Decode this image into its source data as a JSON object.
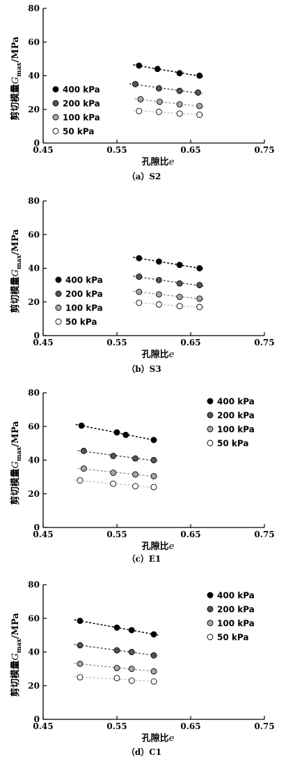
{
  "chart_data": [
    {
      "type": "scatter",
      "caption": "（a）S2",
      "xlabel": "孔隙比",
      "xlabel_var": "e",
      "ylabel": "剪切模量",
      "ylabel_var": "G",
      "ylabel_sub": "max",
      "ylabel_unit": "/MPa",
      "xlim": [
        0.45,
        0.75
      ],
      "ylim": [
        0,
        80
      ],
      "xticks": [
        "0.45",
        "0.55",
        "0.65",
        "0.75"
      ],
      "yticks": [
        "0",
        "20",
        "40",
        "60",
        "80"
      ],
      "grid": false,
      "legend_position": "left",
      "series": [
        {
          "name": "400 kPa",
          "color": "#000000",
          "x": [
            0.58,
            0.605,
            0.635,
            0.662
          ],
          "y": [
            46,
            44,
            41.5,
            40
          ]
        },
        {
          "name": "200 kPa",
          "color": "#555555",
          "x": [
            0.575,
            0.607,
            0.635,
            0.66
          ],
          "y": [
            35,
            32.5,
            31,
            30
          ]
        },
        {
          "name": "100 kPa",
          "color": "#a8a8a8",
          "x": [
            0.582,
            0.608,
            0.635,
            0.662
          ],
          "y": [
            26,
            24.5,
            23,
            22
          ]
        },
        {
          "name": "50 kPa",
          "color": "#ffffff",
          "x": [
            0.58,
            0.607,
            0.635,
            0.662
          ],
          "y": [
            19,
            18.5,
            17.5,
            16.8
          ]
        }
      ]
    },
    {
      "type": "scatter",
      "caption": "（b）S3",
      "xlabel": "孔隙比",
      "xlabel_var": "e",
      "ylabel": "剪切模量",
      "ylabel_var": "G",
      "ylabel_sub": "max",
      "ylabel_unit": "/MPa",
      "xlim": [
        0.45,
        0.75
      ],
      "ylim": [
        0,
        80
      ],
      "xticks": [
        "0.45",
        "0.55",
        "0.65",
        "0.75"
      ],
      "yticks": [
        "0",
        "20",
        "40",
        "60",
        "80"
      ],
      "grid": false,
      "legend_position": "left",
      "series": [
        {
          "name": "400 kPa",
          "color": "#000000",
          "x": [
            0.58,
            0.607,
            0.635,
            0.662
          ],
          "y": [
            46,
            44,
            42,
            40
          ]
        },
        {
          "name": "200 kPa",
          "color": "#555555",
          "x": [
            0.58,
            0.607,
            0.635,
            0.662
          ],
          "y": [
            35,
            33,
            31,
            30
          ]
        },
        {
          "name": "100 kPa",
          "color": "#a8a8a8",
          "x": [
            0.58,
            0.607,
            0.635,
            0.662
          ],
          "y": [
            26,
            24.5,
            23,
            22
          ]
        },
        {
          "name": "50 kPa",
          "color": "#ffffff",
          "x": [
            0.58,
            0.607,
            0.635,
            0.662
          ],
          "y": [
            19.5,
            18.5,
            17.5,
            17
          ]
        }
      ]
    },
    {
      "type": "scatter",
      "caption": "（c）E1",
      "xlabel": "孔隙比",
      "xlabel_var": "e",
      "ylabel": "剪切模量",
      "ylabel_var": "G",
      "ylabel_sub": "max",
      "ylabel_unit": "/MPa",
      "xlim": [
        0.45,
        0.75
      ],
      "ylim": [
        0,
        80
      ],
      "xticks": [
        "0.45",
        "0.55",
        "0.65",
        "0.75"
      ],
      "yticks": [
        "0",
        "20",
        "40",
        "60",
        "80"
      ],
      "grid": false,
      "legend_position": "top-right",
      "series": [
        {
          "name": "400 kPa",
          "color": "#000000",
          "x": [
            0.502,
            0.55,
            0.562,
            0.6
          ],
          "y": [
            60.5,
            56.5,
            55,
            52
          ]
        },
        {
          "name": "200 kPa",
          "color": "#555555",
          "x": [
            0.505,
            0.545,
            0.575,
            0.6
          ],
          "y": [
            45.5,
            42.5,
            41,
            40
          ]
        },
        {
          "name": "100 kPa",
          "color": "#a8a8a8",
          "x": [
            0.505,
            0.545,
            0.575,
            0.6
          ],
          "y": [
            35,
            32.5,
            31.5,
            30.5
          ]
        },
        {
          "name": "50 kPa",
          "color": "#ffffff",
          "x": [
            0.5,
            0.545,
            0.575,
            0.6
          ],
          "y": [
            28,
            26,
            24.5,
            24
          ]
        }
      ]
    },
    {
      "type": "scatter",
      "caption": "（d）C1",
      "xlabel": "孔隙比",
      "xlabel_var": "e",
      "ylabel": "剪切模量",
      "ylabel_var": "G",
      "ylabel_sub": "max",
      "ylabel_unit": "/MPa",
      "xlim": [
        0.45,
        0.75
      ],
      "ylim": [
        0,
        80
      ],
      "xticks": [
        "0.45",
        "0.55",
        "0.65",
        "0.75"
      ],
      "yticks": [
        "0",
        "20",
        "40",
        "60",
        "80"
      ],
      "grid": false,
      "legend_position": "top-right",
      "series": [
        {
          "name": "400 kPa",
          "color": "#000000",
          "x": [
            0.5,
            0.55,
            0.57,
            0.6
          ],
          "y": [
            58.5,
            54.5,
            53,
            50.5
          ]
        },
        {
          "name": "200 kPa",
          "color": "#555555",
          "x": [
            0.5,
            0.55,
            0.57,
            0.6
          ],
          "y": [
            44,
            41,
            40,
            38
          ]
        },
        {
          "name": "100 kPa",
          "color": "#a8a8a8",
          "x": [
            0.5,
            0.55,
            0.57,
            0.6
          ],
          "y": [
            33,
            30.5,
            30,
            28.5
          ]
        },
        {
          "name": "50 kPa",
          "color": "#ffffff",
          "x": [
            0.5,
            0.55,
            0.57,
            0.6
          ],
          "y": [
            25,
            24.5,
            23,
            22.5
          ]
        }
      ]
    }
  ],
  "colors": {
    "axis": "#000000",
    "marker_edge": "#000000",
    "trend_400": "#000000",
    "trend_200": "#555555",
    "trend_100": "#999999",
    "trend_50": "#c8c8c8"
  }
}
